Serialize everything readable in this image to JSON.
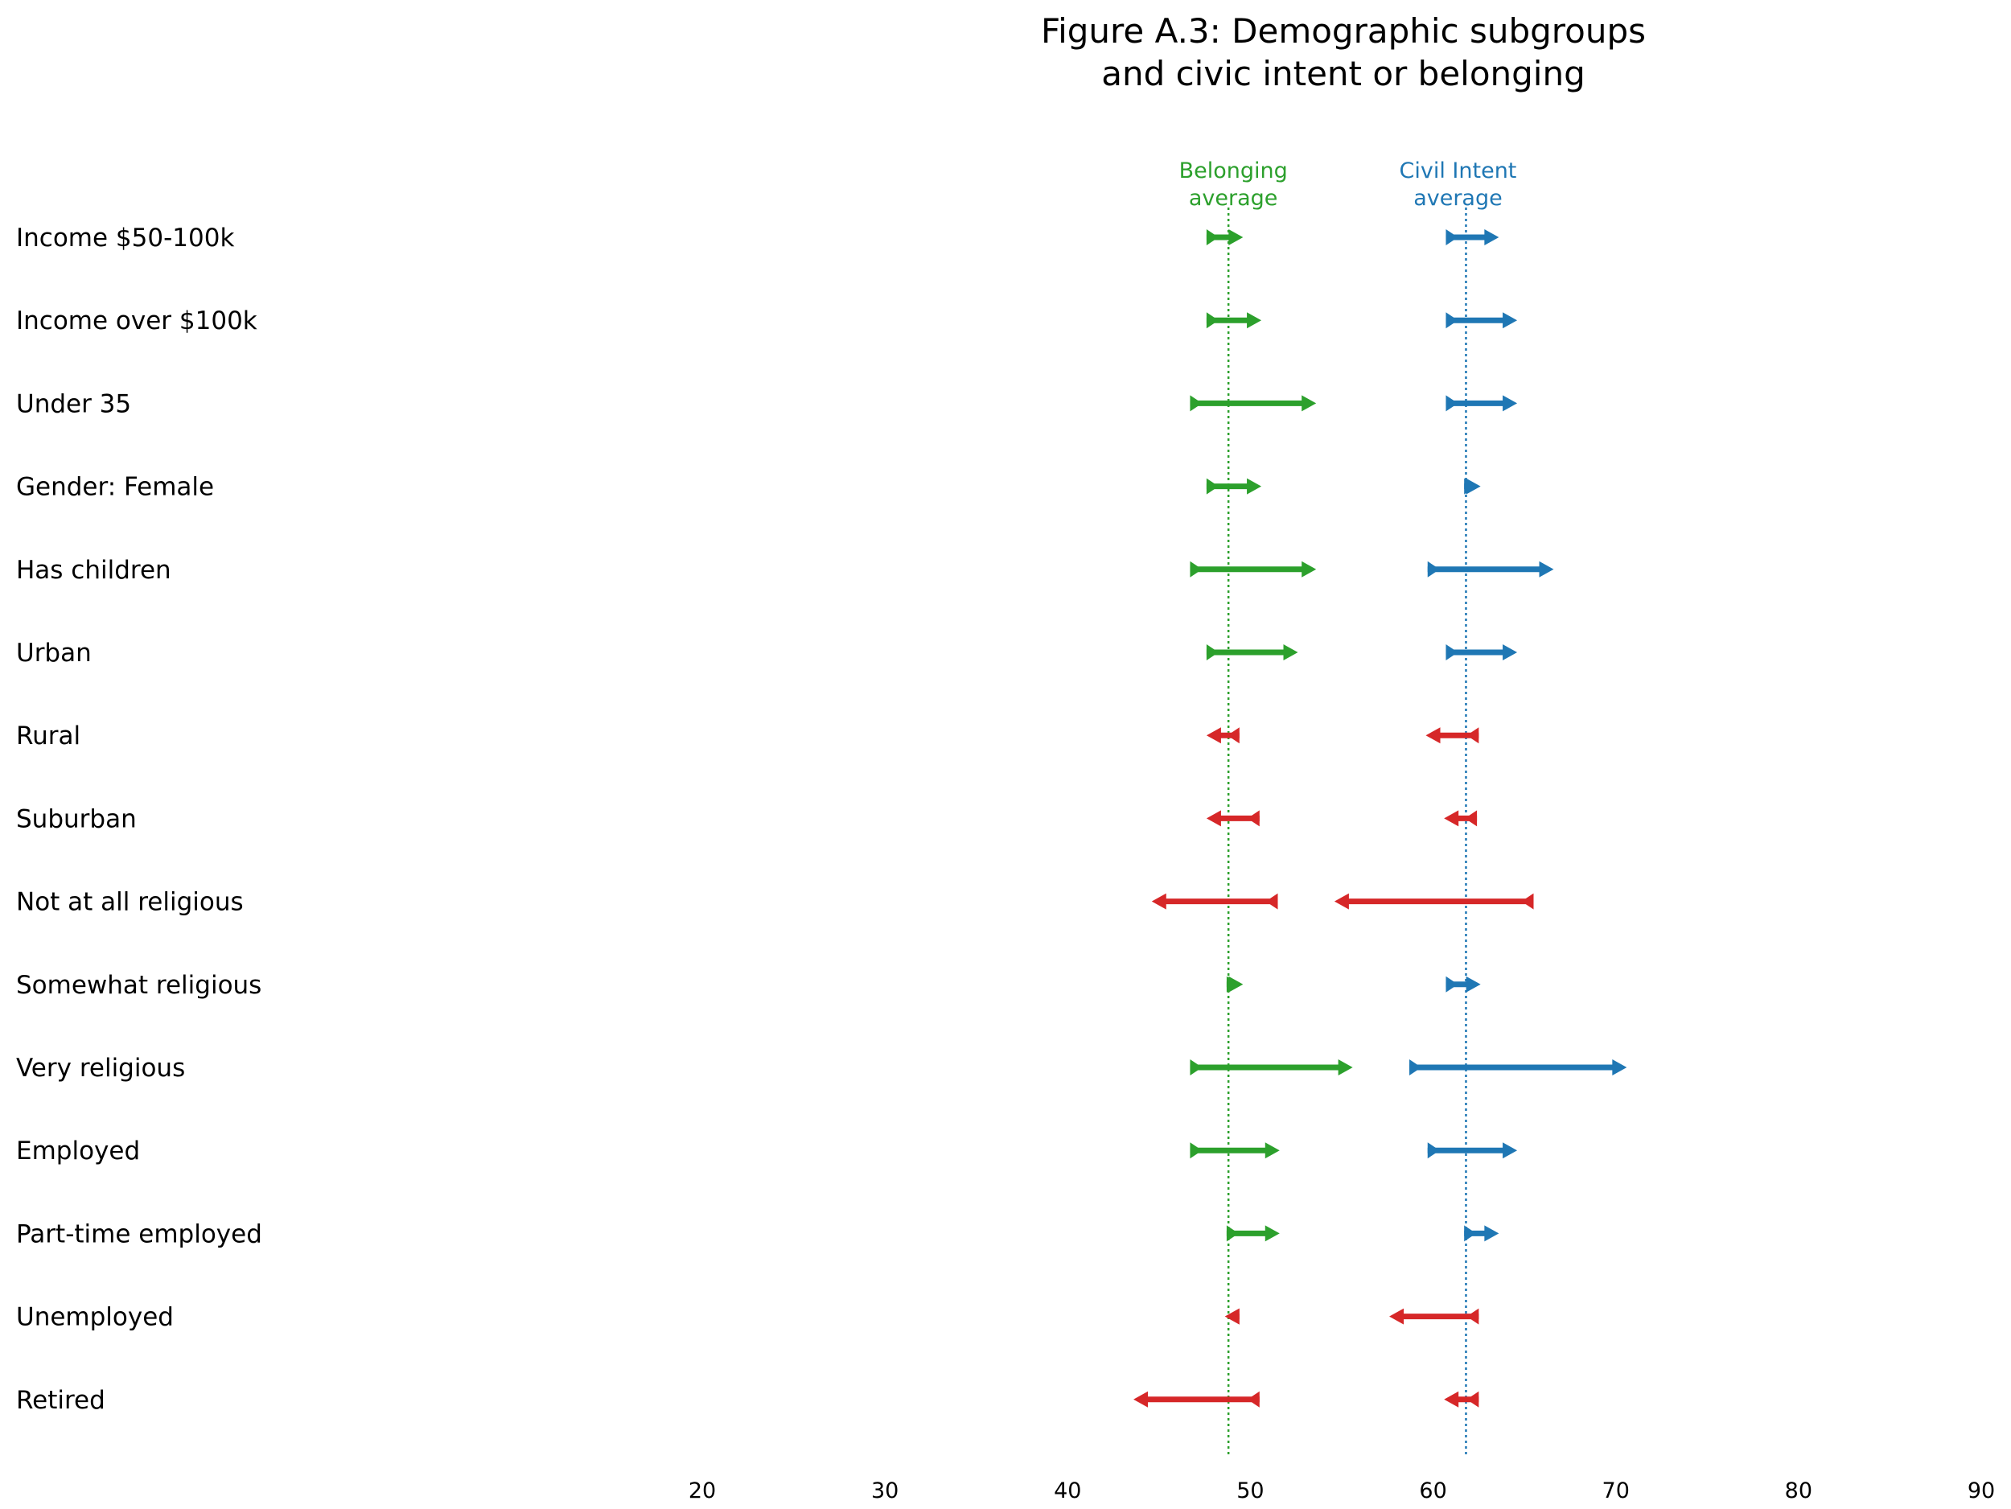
{
  "chart_data": {
    "type": "arrow-dumbbell",
    "title_lines": [
      "Figure A.3: Demographic subgroups",
      "and civic intent or belonging"
    ],
    "xlabel": "",
    "ylabel": "",
    "xlim": [
      20,
      90
    ],
    "xticks": [
      "20",
      "30",
      "40",
      "50",
      "60",
      "70",
      "80",
      "90"
    ],
    "grid": false,
    "colors": {
      "belonging": "#2ca02c",
      "civic": "#1f77b4",
      "below": "#d62728"
    },
    "averages": [
      {
        "name": "Belonging average",
        "lines": [
          "Belonging",
          "average"
        ],
        "value": 48.8,
        "color": "#2ca02c"
      },
      {
        "name": "Civil Intent average",
        "lines": [
          "Civil Intent",
          "average"
        ],
        "value": 61.8,
        "color": "#1f77b4"
      }
    ],
    "categories": [
      "Income $50-100k",
      "Income over $100k",
      "Under 35",
      "Gender: Female",
      "Has children",
      "Urban",
      "Rural",
      "Suburban",
      "Not at all religious",
      "Somewhat religious",
      "Very religious",
      "Employed",
      "Part-time employed",
      "Unemployed",
      "Retired"
    ],
    "series": [
      {
        "name": "Belonging",
        "rows": [
          {
            "start": 47.6,
            "end": 49.6
          },
          {
            "start": 47.6,
            "end": 50.6
          },
          {
            "start": 46.7,
            "end": 53.6
          },
          {
            "start": 47.6,
            "end": 50.6
          },
          {
            "start": 46.7,
            "end": 53.6
          },
          {
            "start": 47.6,
            "end": 52.6
          },
          {
            "start": 49.4,
            "end": 47.6
          },
          {
            "start": 50.5,
            "end": 47.6
          },
          {
            "start": 51.5,
            "end": 44.6
          },
          {
            "start": 48.7,
            "end": 49.6
          },
          {
            "start": 46.7,
            "end": 55.6
          },
          {
            "start": 46.7,
            "end": 51.6
          },
          {
            "start": 48.7,
            "end": 51.6
          },
          {
            "start": 49.4,
            "end": 48.6
          },
          {
            "start": 50.5,
            "end": 43.6
          }
        ]
      },
      {
        "name": "Civil Intent",
        "rows": [
          {
            "start": 60.7,
            "end": 63.6
          },
          {
            "start": 60.7,
            "end": 64.6
          },
          {
            "start": 60.7,
            "end": 64.6
          },
          {
            "start": 61.7,
            "end": 62.6
          },
          {
            "start": 59.7,
            "end": 66.6
          },
          {
            "start": 60.7,
            "end": 64.6
          },
          {
            "start": 62.5,
            "end": 59.6
          },
          {
            "start": 62.4,
            "end": 60.6
          },
          {
            "start": 65.5,
            "end": 54.6
          },
          {
            "start": 60.7,
            "end": 62.6
          },
          {
            "start": 58.7,
            "end": 70.6
          },
          {
            "start": 59.7,
            "end": 64.6
          },
          {
            "start": 61.7,
            "end": 63.6
          },
          {
            "start": 62.5,
            "end": 57.6
          },
          {
            "start": 62.5,
            "end": 60.6
          }
        ]
      }
    ]
  }
}
